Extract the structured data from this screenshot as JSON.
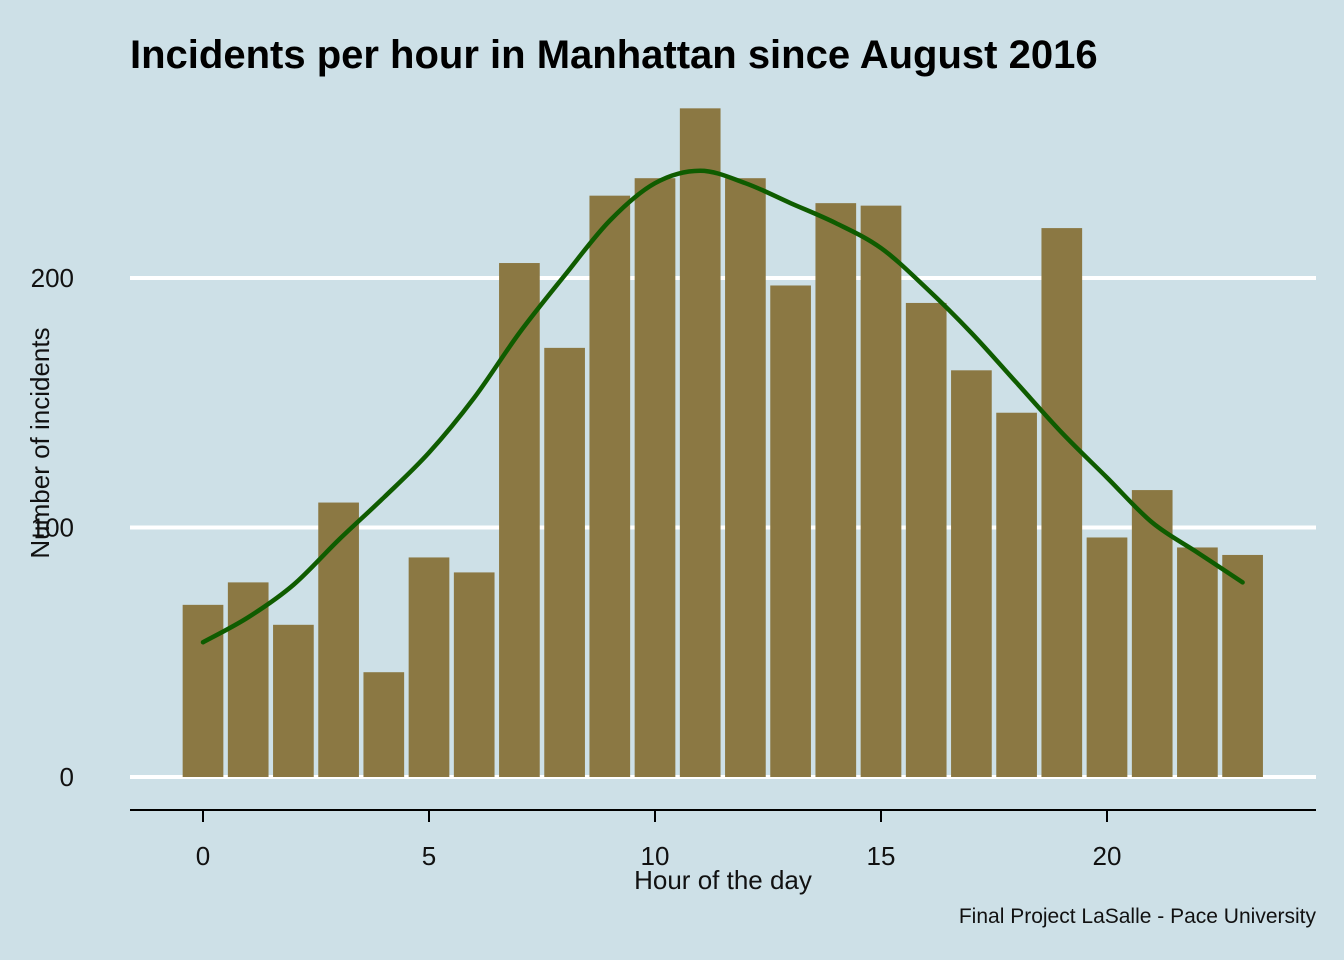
{
  "chart_data": {
    "type": "bar",
    "title": "Incidents per hour in Manhattan since August 2016",
    "xlabel": "Hour of the day",
    "ylabel": "Number of incidents",
    "caption": "Final Project LaSalle - Pace University",
    "x": [
      0,
      1,
      2,
      3,
      4,
      5,
      6,
      7,
      8,
      9,
      10,
      11,
      12,
      13,
      14,
      15,
      16,
      17,
      18,
      19,
      20,
      21,
      22,
      23
    ],
    "values": [
      69,
      78,
      61,
      110,
      42,
      88,
      82,
      206,
      172,
      233,
      240,
      268,
      240,
      197,
      230,
      229,
      190,
      163,
      146,
      220,
      96,
      115,
      92,
      89
    ],
    "xticks": [
      0,
      5,
      10,
      15,
      20
    ],
    "xtick_labels": [
      "0",
      "5",
      "10",
      "15",
      "20"
    ],
    "yticks": [
      0,
      100,
      200
    ],
    "ytick_labels": [
      "0",
      "100",
      "200"
    ],
    "xlim": [
      -1.6,
      24.6
    ],
    "ylim": [
      0,
      280
    ],
    "grid": "horizontal",
    "smooth_line": {
      "x": [
        0,
        1,
        2,
        3,
        4,
        5,
        6,
        7,
        8,
        9,
        10,
        11,
        12,
        13,
        14,
        15,
        16,
        17,
        18,
        19,
        20,
        21,
        22,
        23
      ],
      "y": [
        54,
        64,
        77,
        95,
        112,
        130,
        152,
        178,
        201,
        223,
        238,
        243,
        238,
        230,
        222,
        212,
        196,
        178,
        158,
        138,
        120,
        102,
        90,
        78
      ]
    },
    "colors": {
      "background": "#cde0e7",
      "bar": "#8b7843",
      "line": "#0f5c00",
      "grid": "#ffffff",
      "axis": "#000000"
    }
  }
}
